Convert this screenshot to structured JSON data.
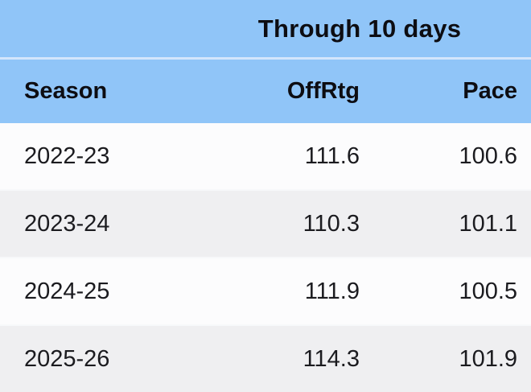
{
  "chart_data": {
    "type": "table",
    "title": "Through 10 days",
    "columns": [
      "Season",
      "OffRtg",
      "Pace"
    ],
    "rows": [
      {
        "season": "2022-23",
        "offrtg": "111.6",
        "pace": "100.6"
      },
      {
        "season": "2023-24",
        "offrtg": "110.3",
        "pace": "101.1"
      },
      {
        "season": "2024-25",
        "offrtg": "111.9",
        "pace": "100.5"
      },
      {
        "season": "2025-26",
        "offrtg": "114.3",
        "pace": "101.9"
      }
    ]
  },
  "table": {
    "group_header": "Through 10 days",
    "headers": {
      "season": "Season",
      "offrtg": "OffRtg",
      "pace": "Pace"
    },
    "rows": [
      {
        "season": "2022-23",
        "offrtg": "111.6",
        "pace": "100.6"
      },
      {
        "season": "2023-24",
        "offrtg": "110.3",
        "pace": "101.1"
      },
      {
        "season": "2024-25",
        "offrtg": "111.9",
        "pace": "100.5"
      },
      {
        "season": "2025-26",
        "offrtg": "114.3",
        "pace": "101.9"
      }
    ]
  },
  "colors": {
    "header_bg": "#90c5f8",
    "header_divider": "#d3e6fc",
    "row_even_bg": "#fcfcfd",
    "row_odd_bg": "#efeff1",
    "text": "#1b1b1f"
  }
}
